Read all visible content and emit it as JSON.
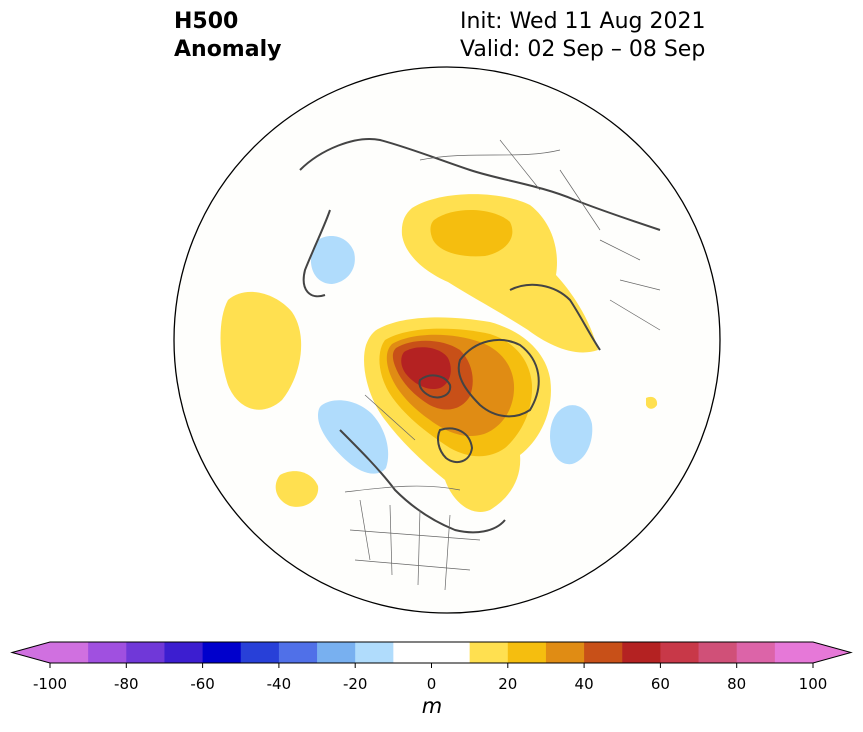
{
  "title": {
    "left": [
      "H500",
      "Anomaly"
    ],
    "right": [
      "Init: Wed 11 Aug 2021",
      "Valid: 02 Sep – 08 Sep"
    ]
  },
  "map": {
    "projection": "polar-stereographic",
    "hemisphere": "northern",
    "variable": "500 hPa geopotential height anomaly",
    "features": [
      {
        "type": "positive",
        "region": "Arctic / Greenland / northern Canada",
        "max_anomaly_range": [
          50,
          60
        ]
      },
      {
        "type": "positive",
        "region": "northern Siberia / Kara Sea",
        "max_anomaly_range": [
          20,
          30
        ]
      },
      {
        "type": "positive",
        "region": "Scandinavia / Barents Sea",
        "max_anomaly_range": [
          10,
          20
        ]
      },
      {
        "type": "positive",
        "region": "North Pacific",
        "max_anomaly_range": [
          10,
          20
        ]
      },
      {
        "type": "positive",
        "region": "eastern subtropical Pacific",
        "max_anomaly_range": [
          10,
          20
        ]
      },
      {
        "type": "positive",
        "region": "Eastern Canada / Hudson Bay",
        "max_anomaly_range": [
          10,
          20
        ]
      },
      {
        "type": "negative",
        "region": "Gulf of Alaska",
        "max_anomaly_range": [
          -20,
          -10
        ]
      },
      {
        "type": "negative",
        "region": "central North Atlantic",
        "max_anomaly_range": [
          -20,
          -10
        ]
      },
      {
        "type": "negative",
        "region": "Sea of Okhotsk / Kamchatka",
        "max_anomaly_range": [
          -20,
          -10
        ]
      }
    ]
  },
  "colorbar": {
    "unit": "m",
    "extend": "both",
    "colors": [
      "#d070e0",
      "#a050e0",
      "#7038d8",
      "#3c1ed0",
      "#0000cc",
      "#2840d8",
      "#5070e8",
      "#78b0f0",
      "#b0dcfc",
      "#ffffff",
      "#ffffff",
      "#ffe050",
      "#f5be0f",
      "#e08c14",
      "#c85018",
      "#b42222",
      "#c83848",
      "#d05078",
      "#dc64a8",
      "#e678d8"
    ],
    "boundaries": [
      -100,
      -90,
      -80,
      -70,
      -60,
      -50,
      -40,
      -30,
      -20,
      -10,
      0,
      10,
      20,
      30,
      40,
      50,
      60,
      70,
      80,
      90,
      100
    ],
    "under_color": "#d070e0",
    "over_color": "#e678d8",
    "tick_labels": [
      "-100",
      "-80",
      "-60",
      "-40",
      "-20",
      "0",
      "20",
      "40",
      "60",
      "80",
      "100"
    ]
  }
}
